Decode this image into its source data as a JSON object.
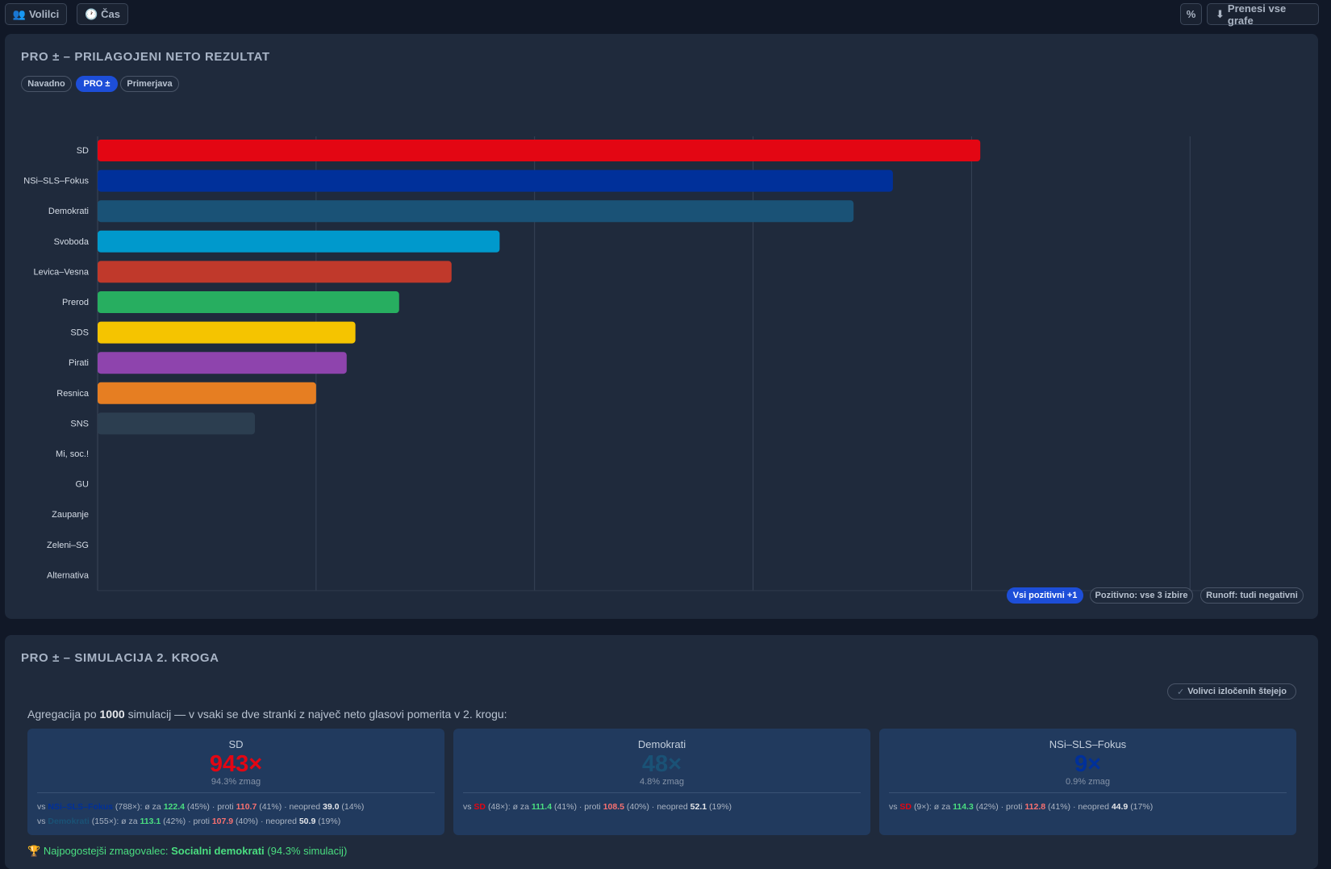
{
  "toolbar": {
    "voters_btn": "Volilci",
    "time_btn": "Čas",
    "percent_btn": "%",
    "download_btn": "Prenesi vse grafe"
  },
  "icons": {
    "voters": "people-icon",
    "time": "clock-icon",
    "download": "download-icon",
    "trophy": "trophy-icon",
    "check": "check-icon"
  },
  "chart_card": {
    "title": "PRO ± – PRILAGOJENI NETO REZULTAT",
    "modes": [
      "Navadno",
      "PRO ±",
      "Primerjava"
    ],
    "active_mode": "PRO ±",
    "filters": [
      "Vsi pozitivni +1",
      "Pozitivno: vse 3 izbire",
      "Runoff: tudi negativni"
    ],
    "active_filter": "Vsi pozitivni +1"
  },
  "chart_data": {
    "type": "bar",
    "orientation": "horizontal",
    "categories": [
      "SD",
      "NSi–SLS–Fokus",
      "Demokrati",
      "Svoboda",
      "Levica–Vesna",
      "Prerod",
      "SDS",
      "Pirati",
      "Resnica",
      "SNS",
      "Mi, soc.!",
      "GU",
      "Zaupanje",
      "Zeleni–SG",
      "Alternativa"
    ],
    "values": [
      20.2,
      18.2,
      17.3,
      9.2,
      8.1,
      6.9,
      5.9,
      5.7,
      5.0,
      3.6,
      0,
      0,
      0,
      0,
      0
    ],
    "colors": [
      "#e30613",
      "#00309a",
      "#1a5276",
      "#0099cc",
      "#c0392b",
      "#27ae60",
      "#f5c400",
      "#8e44ad",
      "#e67e22",
      "#2c3e50",
      "#1f2a3c",
      "#1f2a3c",
      "#1f2a3c",
      "#1f2a3c",
      "#1f2a3c"
    ],
    "xlim": [
      0,
      25.9
    ],
    "xticks": [
      0,
      5,
      10,
      15,
      20,
      25
    ],
    "grid": true,
    "legend": "none"
  },
  "sim_card": {
    "title": "PRO ± – SIMULACIJA 2. KROGA",
    "toggle_label": "Volivci izločenih štejejo",
    "agg_prefix": "Agregacija po",
    "agg_count": "1000",
    "agg_suffix": "simulacij — v vsaki se dve stranki z največ neto glasovi pomerita v 2. krogu:",
    "results": [
      {
        "name": "SD",
        "count": "943×",
        "pct": "94.3% zmag",
        "color": "#e30613",
        "lines": [
          {
            "vs_label": "vs",
            "opp": "NSi–SLS–Fokus",
            "opp_color": "#00309a",
            "n": "(788×): ø za",
            "za": "122.4",
            "za_pct": "(45%) · proti",
            "proti": "110.7",
            "proti_pct": "(41%) · neopred",
            "neo": "39.0",
            "neo_pct": "(14%)"
          },
          {
            "vs_label": "vs",
            "opp": "Demokrati",
            "opp_color": "#1a5276",
            "n": "(155×): ø za",
            "za": "113.1",
            "za_pct": "(42%) · proti",
            "proti": "107.9",
            "proti_pct": "(40%) · neopred",
            "neo": "50.9",
            "neo_pct": "(19%)"
          }
        ]
      },
      {
        "name": "Demokrati",
        "count": "48×",
        "pct": "4.8% zmag",
        "color": "#1a5276",
        "lines": [
          {
            "vs_label": "vs",
            "opp": "SD",
            "opp_color": "#e30613",
            "n": "(48×): ø za",
            "za": "111.4",
            "za_pct": "(41%) · proti",
            "proti": "108.5",
            "proti_pct": "(40%) · neopred",
            "neo": "52.1",
            "neo_pct": "(19%)"
          }
        ]
      },
      {
        "name": "NSi–SLS–Fokus",
        "count": "9×",
        "pct": "0.9% zmag",
        "color": "#00309a",
        "lines": [
          {
            "vs_label": "vs",
            "opp": "SD",
            "opp_color": "#e30613",
            "n": "(9×): ø za",
            "za": "114.3",
            "za_pct": "(42%) · proti",
            "proti": "112.8",
            "proti_pct": "(41%) · neopred",
            "neo": "44.9",
            "neo_pct": "(17%)"
          }
        ]
      }
    ],
    "winner_prefix": "Najpogostejši zmagovalec:",
    "winner_name": "Socialni demokrati",
    "winner_suffix": "(94.3% simulacij)"
  }
}
